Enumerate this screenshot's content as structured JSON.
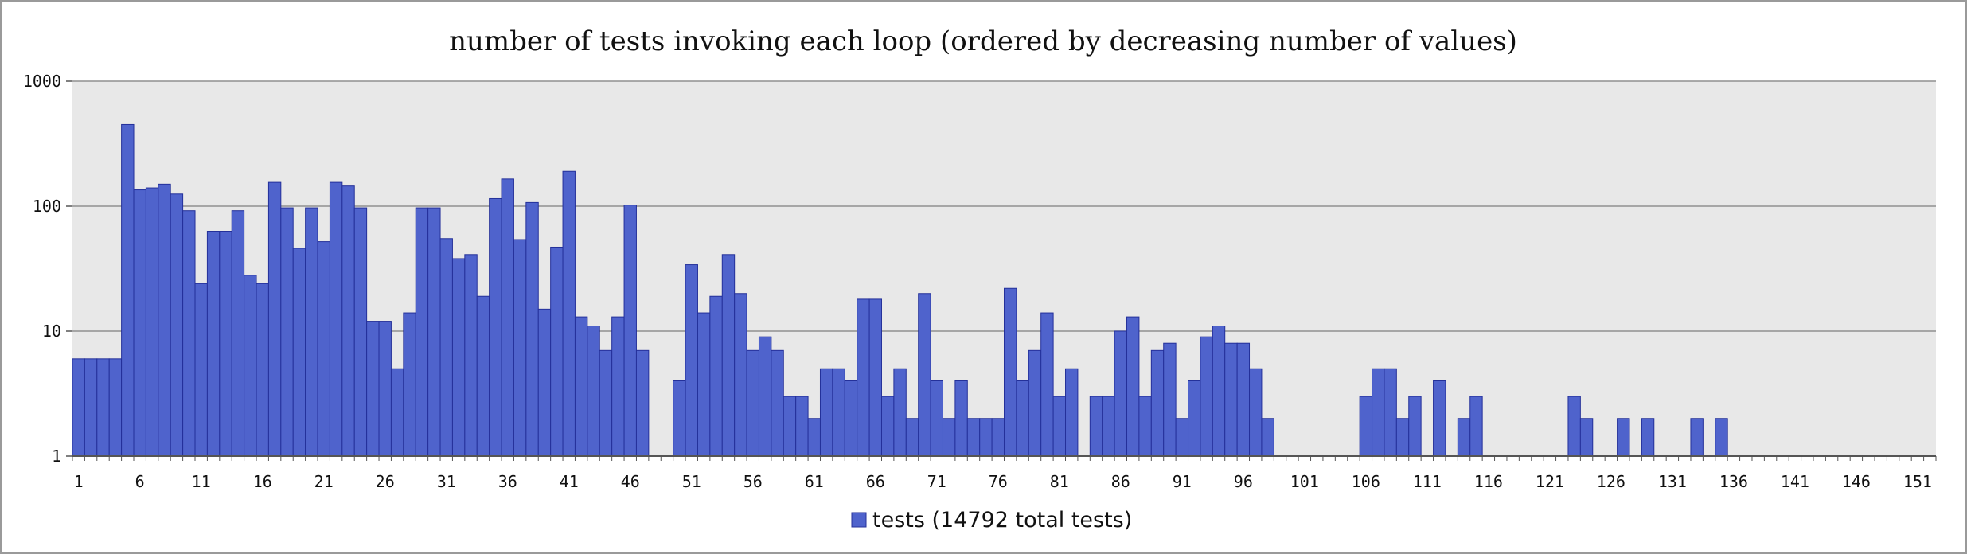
{
  "chart_data": {
    "type": "bar",
    "title": "number of tests invoking each loop (ordered by decreasing number of values)",
    "y_scale": "log",
    "ylim": [
      1,
      1000
    ],
    "y_ticks": [
      1,
      10,
      100,
      1000
    ],
    "x_range": [
      1,
      152
    ],
    "x_tick_labels": [
      "1",
      "6",
      "11",
      "16",
      "21",
      "26",
      "31",
      "36",
      "41",
      "46",
      "51",
      "56",
      "61",
      "66",
      "71",
      "76",
      "81",
      "86",
      "91",
      "96",
      "101",
      "106",
      "111",
      "116",
      "121",
      "126",
      "131",
      "136",
      "141",
      "146",
      "151"
    ],
    "grid": true,
    "legend_position": "bottom-center",
    "colors": {
      "bar": "#4f63cc",
      "bar_edge": "#24309a",
      "plot_bg": "#e8e8e8",
      "grid": "#8f8f8f"
    },
    "series": [
      {
        "name": "tests (14792 total tests)",
        "values": [
          6,
          6,
          6,
          6,
          450,
          135,
          140,
          150,
          125,
          92,
          24,
          63,
          63,
          92,
          28,
          24,
          155,
          97,
          46,
          97,
          52,
          155,
          145,
          97,
          12,
          12,
          5,
          14,
          97,
          97,
          55,
          38,
          41,
          19,
          115,
          165,
          54,
          107,
          15,
          47,
          190,
          13,
          11,
          7,
          13,
          102,
          7,
          1,
          1,
          4,
          34,
          14,
          19,
          41,
          20,
          7,
          9,
          7,
          3,
          3,
          2,
          5,
          5,
          4,
          18,
          18,
          3,
          5,
          2,
          20,
          4,
          2,
          4,
          2,
          2,
          2,
          22,
          4,
          7,
          14,
          3,
          5,
          1,
          3,
          3,
          10,
          13,
          3,
          7,
          8,
          2,
          4,
          9,
          11,
          8,
          8,
          5,
          2,
          1,
          1,
          1,
          1,
          1,
          1,
          1,
          3,
          5,
          5,
          2,
          3,
          1,
          4,
          1,
          2,
          3,
          1,
          1,
          1,
          1,
          1,
          1,
          1,
          3,
          2,
          1,
          1,
          2,
          1,
          2,
          1,
          1,
          1,
          2,
          1,
          2,
          1,
          1,
          1,
          1,
          1,
          1,
          1,
          1,
          1,
          1,
          1,
          1,
          1,
          1,
          1,
          1,
          1
        ]
      }
    ]
  }
}
